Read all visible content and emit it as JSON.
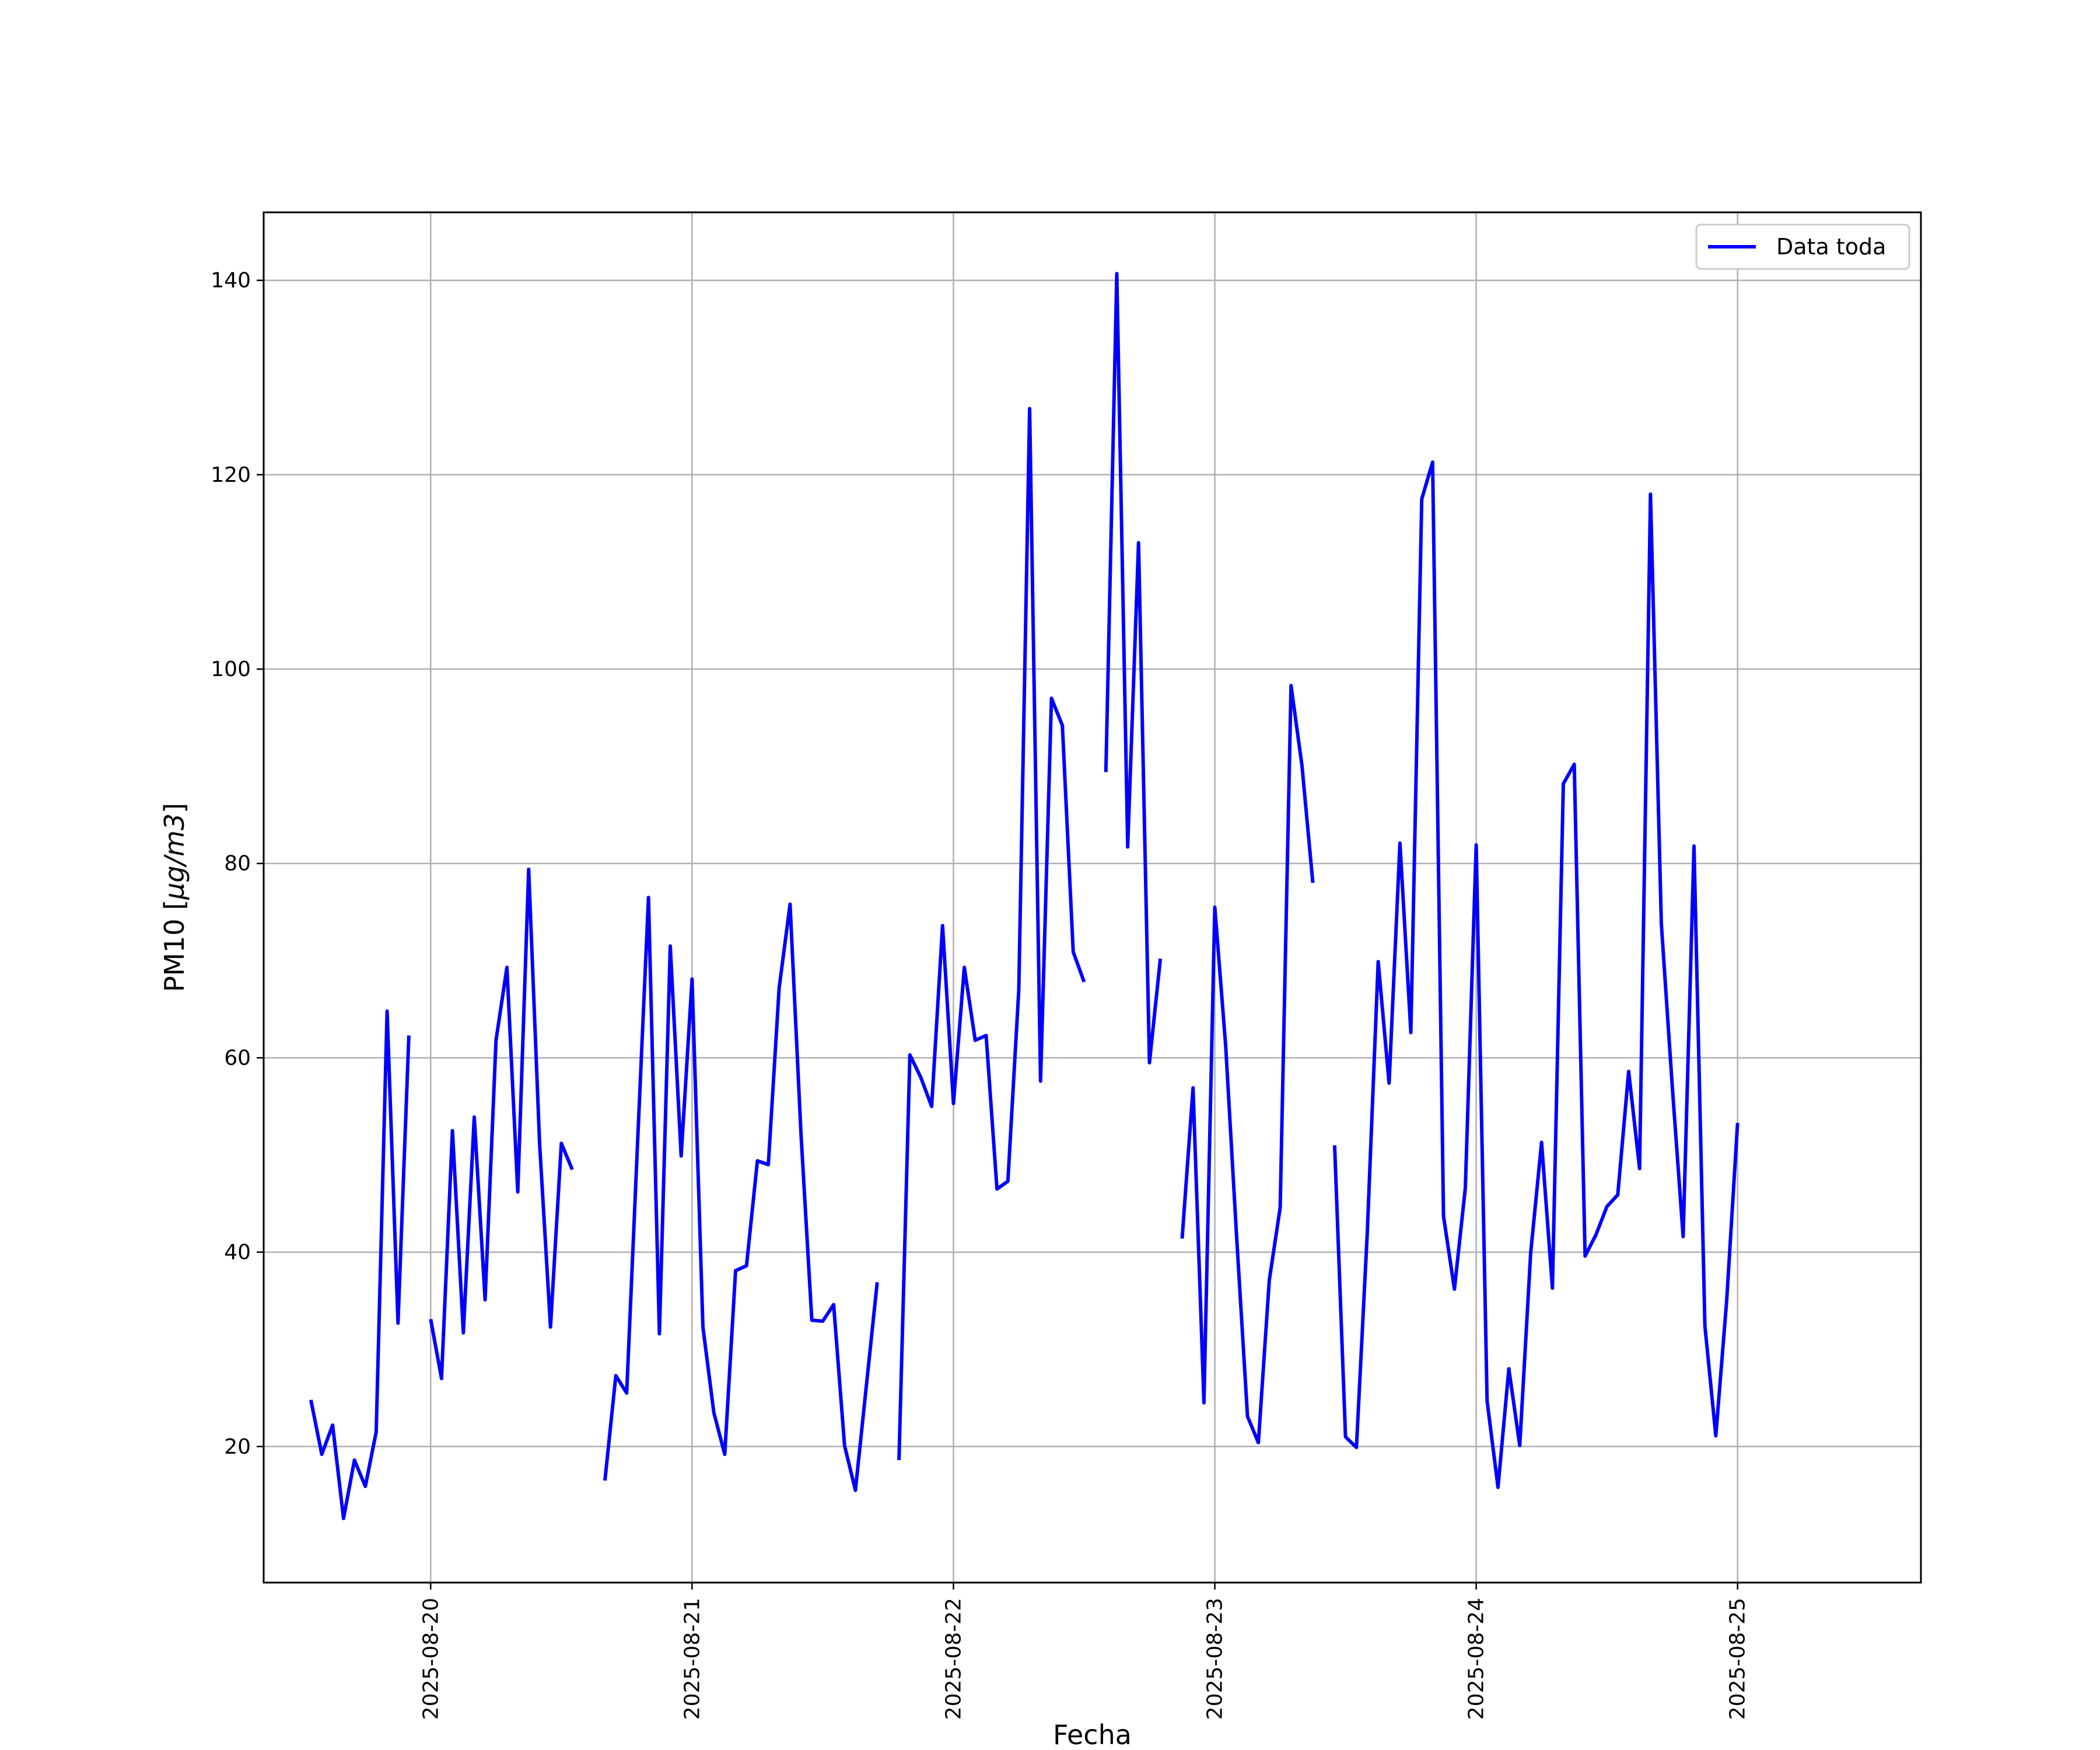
{
  "chart_data": {
    "type": "line",
    "title": "",
    "xlabel": "Fecha",
    "ylabel": "PM10 [µg/m3]",
    "ylabel_parts": {
      "prefix": "PM10 [",
      "unit": "µg/m3",
      "suffix": "]"
    },
    "x_type": "date",
    "xlim": [
      "2025-08-19T08:40",
      "2025-08-25T16:50"
    ],
    "ylim": [
      6,
      147
    ],
    "x_ticks": [
      "2025-08-20",
      "2025-08-21",
      "2025-08-22",
      "2025-08-23",
      "2025-08-24",
      "2025-08-25"
    ],
    "y_ticks": [
      20,
      40,
      60,
      80,
      100,
      120,
      140
    ],
    "grid": true,
    "legend_position": "top-right",
    "color": "#0000ff",
    "series": [
      {
        "name": "Data toda",
        "points": [
          [
            "2025-08-19T13:00",
            24.8
          ],
          [
            "2025-08-19T14:00",
            19.2
          ],
          [
            "2025-08-19T15:00",
            22.2
          ],
          [
            "2025-08-19T16:00",
            12.6
          ],
          [
            "2025-08-19T17:00",
            18.6
          ],
          [
            "2025-08-19T18:00",
            15.9
          ],
          [
            "2025-08-19T19:00",
            21.5
          ],
          [
            "2025-08-19T20:00",
            64.8
          ],
          [
            "2025-08-19T21:00",
            32.7
          ],
          [
            "2025-08-19T22:00",
            62.3
          ],
          [
            "2025-08-19T23:00",
            null
          ],
          [
            "2025-08-20T00:00",
            33.1
          ],
          [
            "2025-08-20T01:00",
            27.0
          ],
          [
            "2025-08-20T02:00",
            52.5
          ],
          [
            "2025-08-20T03:00",
            31.7
          ],
          [
            "2025-08-20T04:00",
            53.9
          ],
          [
            "2025-08-20T05:00",
            35.1
          ],
          [
            "2025-08-20T06:00",
            61.8
          ],
          [
            "2025-08-20T07:00",
            69.3
          ],
          [
            "2025-08-20T08:00",
            46.2
          ],
          [
            "2025-08-20T09:00",
            79.4
          ],
          [
            "2025-08-20T10:00",
            51.2
          ],
          [
            "2025-08-20T11:00",
            32.3
          ],
          [
            "2025-08-20T12:00",
            51.2
          ],
          [
            "2025-08-20T13:00",
            48.5
          ],
          [
            "2025-08-20T14:00",
            null
          ],
          [
            "2025-08-20T15:00",
            null
          ],
          [
            "2025-08-20T16:00",
            16.5
          ],
          [
            "2025-08-20T17:00",
            27.3
          ],
          [
            "2025-08-20T18:00",
            25.5
          ],
          [
            "2025-08-20T19:00",
            51.3
          ],
          [
            "2025-08-20T20:00",
            76.5
          ],
          [
            "2025-08-20T21:00",
            31.6
          ],
          [
            "2025-08-20T22:00",
            71.5
          ],
          [
            "2025-08-20T23:00",
            49.9
          ],
          [
            "2025-08-21T00:00",
            68.1
          ],
          [
            "2025-08-21T01:00",
            32.3
          ],
          [
            "2025-08-21T02:00",
            23.5
          ],
          [
            "2025-08-21T03:00",
            19.2
          ],
          [
            "2025-08-21T04:00",
            38.1
          ],
          [
            "2025-08-21T05:00",
            38.6
          ],
          [
            "2025-08-21T06:00",
            49.4
          ],
          [
            "2025-08-21T07:00",
            49.0
          ],
          [
            "2025-08-21T08:00",
            67.2
          ],
          [
            "2025-08-21T09:00",
            75.8
          ],
          [
            "2025-08-21T10:00",
            52.2
          ],
          [
            "2025-08-21T11:00",
            33.0
          ],
          [
            "2025-08-21T12:00",
            32.9
          ],
          [
            "2025-08-21T13:00",
            34.6
          ],
          [
            "2025-08-21T14:00",
            20.1
          ],
          [
            "2025-08-21T15:00",
            15.5
          ],
          [
            "2025-08-21T16:00",
            26.2
          ],
          [
            "2025-08-21T17:00",
            36.9
          ],
          [
            "2025-08-21T18:00",
            null
          ],
          [
            "2025-08-21T19:00",
            18.6
          ],
          [
            "2025-08-21T20:00",
            60.3
          ],
          [
            "2025-08-21T21:00",
            58.0
          ],
          [
            "2025-08-21T22:00",
            55.0
          ],
          [
            "2025-08-21T23:00",
            73.6
          ],
          [
            "2025-08-22T00:00",
            55.3
          ],
          [
            "2025-08-22T01:00",
            69.3
          ],
          [
            "2025-08-22T02:00",
            61.8
          ],
          [
            "2025-08-22T03:00",
            62.3
          ],
          [
            "2025-08-22T04:00",
            46.5
          ],
          [
            "2025-08-22T05:00",
            47.3
          ],
          [
            "2025-08-22T06:00",
            67.0
          ],
          [
            "2025-08-22T07:00",
            126.8
          ],
          [
            "2025-08-22T08:00",
            57.6
          ],
          [
            "2025-08-22T09:00",
            97.0
          ],
          [
            "2025-08-22T10:00",
            94.2
          ],
          [
            "2025-08-22T11:00",
            70.9
          ],
          [
            "2025-08-22T12:00",
            67.8
          ],
          [
            "2025-08-22T13:00",
            null
          ],
          [
            "2025-08-22T14:00",
            89.4
          ],
          [
            "2025-08-22T15:00",
            140.7
          ],
          [
            "2025-08-22T16:00",
            81.7
          ],
          [
            "2025-08-22T17:00",
            113.0
          ],
          [
            "2025-08-22T18:00",
            59.5
          ],
          [
            "2025-08-22T19:00",
            70.2
          ],
          [
            "2025-08-22T20:00",
            null
          ],
          [
            "2025-08-22T21:00",
            41.4
          ],
          [
            "2025-08-22T22:00",
            56.9
          ],
          [
            "2025-08-22T23:00",
            24.5
          ],
          [
            "2025-08-23T00:00",
            75.5
          ],
          [
            "2025-08-23T01:00",
            61.2
          ],
          [
            "2025-08-23T02:00",
            41.6
          ],
          [
            "2025-08-23T03:00",
            23.1
          ],
          [
            "2025-08-23T04:00",
            20.4
          ],
          [
            "2025-08-23T05:00",
            37.1
          ],
          [
            "2025-08-23T06:00",
            44.6
          ],
          [
            "2025-08-23T07:00",
            98.3
          ],
          [
            "2025-08-23T08:00",
            90.1
          ],
          [
            "2025-08-23T09:00",
            78.0
          ],
          [
            "2025-08-23T10:00",
            null
          ],
          [
            "2025-08-23T11:00",
            51.0
          ],
          [
            "2025-08-23T12:00",
            21.0
          ],
          [
            "2025-08-23T13:00",
            19.9
          ],
          [
            "2025-08-23T14:00",
            42.0
          ],
          [
            "2025-08-23T15:00",
            69.9
          ],
          [
            "2025-08-23T16:00",
            57.4
          ],
          [
            "2025-08-23T17:00",
            82.1
          ],
          [
            "2025-08-23T18:00",
            62.6
          ],
          [
            "2025-08-23T19:00",
            117.5
          ],
          [
            "2025-08-23T20:00",
            121.3
          ],
          [
            "2025-08-23T21:00",
            43.7
          ],
          [
            "2025-08-23T22:00",
            36.2
          ],
          [
            "2025-08-23T23:00",
            46.6
          ],
          [
            "2025-08-24T00:00",
            81.9
          ],
          [
            "2025-08-24T01:00",
            24.7
          ],
          [
            "2025-08-24T02:00",
            15.8
          ],
          [
            "2025-08-24T03:00",
            28.0
          ],
          [
            "2025-08-24T04:00",
            20.1
          ],
          [
            "2025-08-24T05:00",
            39.9
          ],
          [
            "2025-08-24T06:00",
            51.3
          ],
          [
            "2025-08-24T07:00",
            36.3
          ],
          [
            "2025-08-24T08:00",
            88.2
          ],
          [
            "2025-08-24T09:00",
            90.2
          ],
          [
            "2025-08-24T10:00",
            39.6
          ],
          [
            "2025-08-24T11:00",
            41.8
          ],
          [
            "2025-08-24T12:00",
            44.7
          ],
          [
            "2025-08-24T13:00",
            45.9
          ],
          [
            "2025-08-24T14:00",
            58.6
          ],
          [
            "2025-08-24T15:00",
            48.6
          ],
          [
            "2025-08-24T16:00",
            118.0
          ],
          [
            "2025-08-24T17:00",
            73.8
          ],
          [
            "2025-08-24T18:00",
            57.1
          ],
          [
            "2025-08-24T19:00",
            41.6
          ],
          [
            "2025-08-24T20:00",
            81.8
          ],
          [
            "2025-08-24T21:00",
            32.4
          ],
          [
            "2025-08-24T22:00",
            21.1
          ],
          [
            "2025-08-24T23:00",
            35.0
          ],
          [
            "2025-08-25T00:00",
            53.3
          ]
        ]
      }
    ]
  }
}
